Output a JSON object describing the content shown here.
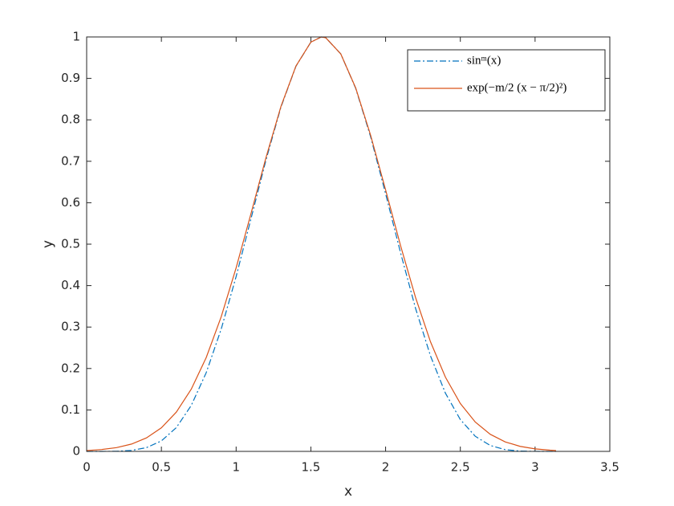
{
  "chart_data": {
    "type": "line",
    "xlabel": "x",
    "ylabel": "y",
    "x": [
      0,
      0.1,
      0.2,
      0.3,
      0.4,
      0.5,
      0.6,
      0.7,
      0.8,
      0.9,
      1.0,
      1.1,
      1.2,
      1.3,
      1.4,
      1.5,
      1.57,
      1.6,
      1.7,
      1.8,
      1.9,
      2.0,
      2.1,
      2.2,
      2.3,
      2.4,
      2.5,
      2.6,
      2.7,
      2.8,
      2.9,
      3.0,
      3.1,
      3.14
    ],
    "series": [
      {
        "name": "sinᵐ(x)",
        "color": "#0072BD",
        "dash": "dashdot",
        "values": [
          0,
          0.0,
          0.0003,
          0.0023,
          0.009,
          0.0253,
          0.0574,
          0.111,
          0.19,
          0.2949,
          0.4219,
          0.5622,
          0.7033,
          0.8307,
          0.9292,
          0.9875,
          1,
          0.9979,
          0.9592,
          0.8759,
          0.7589,
          0.6216,
          0.4793,
          0.3455,
          0.2306,
          0.1406,
          0.0768,
          0.0364,
          0.0143,
          0.0042,
          0.0008,
          0.0001,
          0,
          0
        ]
      },
      {
        "name": "exp(−m/2 (x − π/2)²)",
        "color": "#D95319",
        "dash": "solid",
        "values": [
          0.0021,
          0.0045,
          0.0091,
          0.0177,
          0.0325,
          0.0569,
          0.0948,
          0.1502,
          0.2265,
          0.3247,
          0.4429,
          0.5746,
          0.7092,
          0.8325,
          0.9297,
          0.9875,
          1,
          0.9979,
          0.9591,
          0.8769,
          0.7626,
          0.631,
          0.4966,
          0.3717,
          0.2647,
          0.1792,
          0.1155,
          0.0708,
          0.0413,
          0.0229,
          0.0121,
          0.0061,
          0.0029,
          0.0021
        ]
      }
    ],
    "xlim": [
      0,
      3.5
    ],
    "xticks": [
      0,
      0.5,
      1,
      1.5,
      2,
      2.5,
      3,
      3.5
    ],
    "ylim": [
      0,
      1
    ],
    "yticks": [
      0,
      0.1,
      0.2,
      0.3,
      0.4,
      0.5,
      0.6,
      0.7,
      0.8,
      0.9,
      1
    ],
    "grid": false,
    "legend": "northeast"
  }
}
